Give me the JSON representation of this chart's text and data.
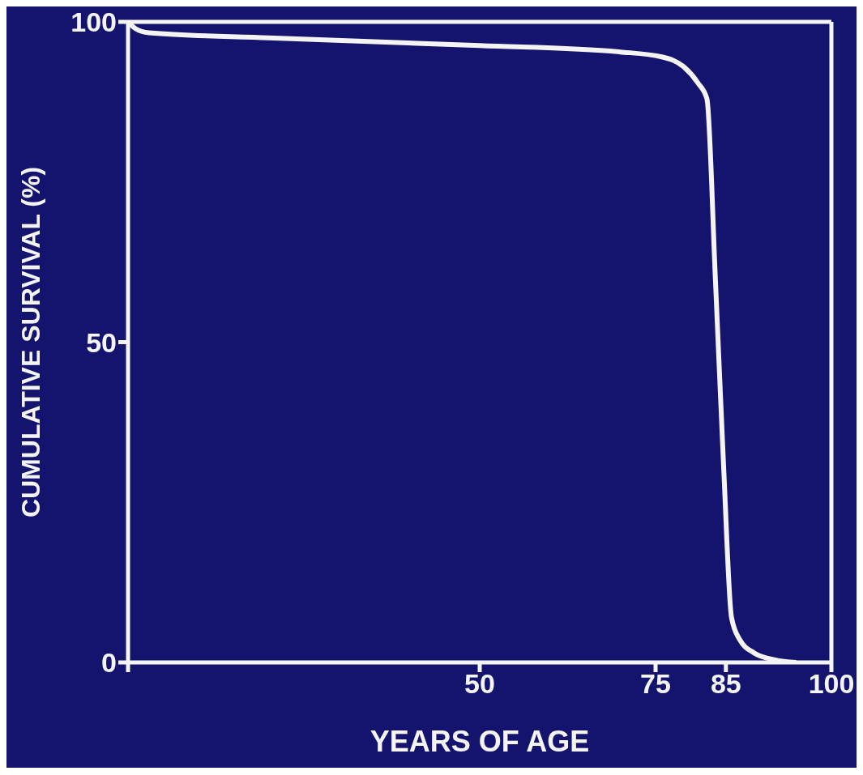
{
  "chart_data": {
    "type": "line",
    "xlabel": "YEARS OF AGE",
    "ylabel": "CUMULATIVE SURVIVAL (%)",
    "x": [
      0,
      1,
      3,
      20,
      50,
      70,
      76,
      79,
      81,
      82.3,
      83.5,
      84.7,
      85.8,
      87,
      89,
      92,
      95
    ],
    "series": [
      {
        "color": "#f4f4f4",
        "values": [
          100,
          99,
          98.3,
          97.5,
          96.3,
          95.3,
          94.5,
          93,
          90.5,
          88,
          60,
          30,
          7,
          3.5,
          1.5,
          0.4,
          0
        ]
      }
    ],
    "xlim": [
      0,
      100
    ],
    "xticks": [
      {
        "value": 0,
        "label": null
      },
      50,
      75,
      85,
      100
    ],
    "ylim": [
      0,
      100
    ],
    "yticks": [
      0,
      50,
      100
    ],
    "grid": false,
    "marker": "none",
    "line_style": "solid"
  }
}
